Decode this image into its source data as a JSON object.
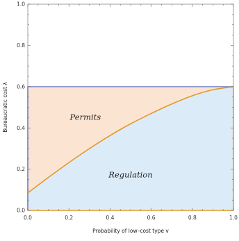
{
  "chart_data": {
    "type": "area",
    "xlabel": "Probability of low–cost type  v",
    "ylabel": "Bureaucratic cost  λ",
    "xlim": [
      0,
      1
    ],
    "ylim": [
      0,
      1
    ],
    "x_ticks": [
      0.0,
      0.2,
      0.4,
      0.6,
      0.8,
      1.0
    ],
    "x_tick_labels": [
      "0.0",
      "0.2",
      "0.4",
      "0.6",
      "0.8",
      "1.0"
    ],
    "y_ticks": [
      0.0,
      0.2,
      0.4,
      0.6,
      0.8,
      1.0
    ],
    "y_tick_labels": [
      "0.0",
      "0.2",
      "0.4",
      "0.6",
      "0.8",
      "1.0"
    ],
    "region_box": {
      "x": [
        0,
        1
      ],
      "y": [
        0,
        0.6
      ]
    },
    "boundary": {
      "x": [
        0.0,
        0.1,
        0.2,
        0.3,
        0.4,
        0.5,
        0.6,
        0.7,
        0.8,
        0.9,
        1.0
      ],
      "y": [
        0.085,
        0.16,
        0.232,
        0.3,
        0.363,
        0.42,
        0.47,
        0.516,
        0.556,
        0.585,
        0.6
      ]
    },
    "regions": [
      {
        "label": "Permits",
        "color": "#fce4d2",
        "label_at": [
          0.28,
          0.44
        ]
      },
      {
        "label": "Regulation",
        "color": "#dcebf8",
        "label_at": [
          0.5,
          0.16
        ]
      }
    ],
    "colors": {
      "boundary": "#e19a29",
      "left_edge": "#6a7fc3",
      "top_edge": "#7a8ac8"
    }
  }
}
